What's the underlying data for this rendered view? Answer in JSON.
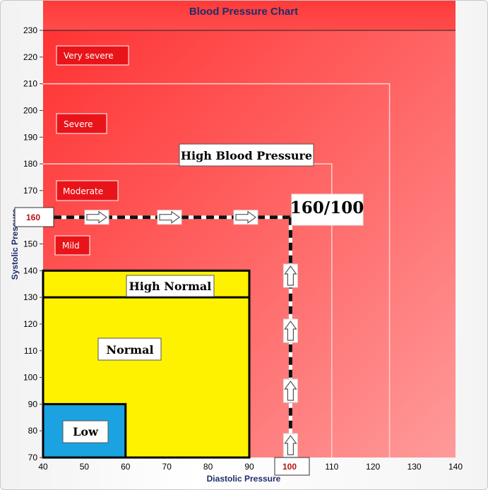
{
  "chart_data": {
    "type": "area",
    "title": "Blood Pressure Chart",
    "xlabel": "Diastolic Pressure",
    "ylabel": "Systolic Pressure",
    "xlim": [
      40,
      140
    ],
    "ylim": [
      70,
      230
    ],
    "x_ticks": [
      40,
      50,
      60,
      70,
      80,
      90,
      100,
      110,
      120,
      130,
      140
    ],
    "y_ticks": [
      70,
      80,
      90,
      100,
      110,
      120,
      130,
      140,
      150,
      160,
      170,
      180,
      190,
      200,
      210,
      220,
      230
    ],
    "zones": [
      {
        "name": "Low",
        "x_max": 60,
        "y_max": 90,
        "color": "#1aa3e0"
      },
      {
        "name": "Normal",
        "x_max": 90,
        "y_max": 130,
        "color": "#fff200"
      },
      {
        "name": "High Normal",
        "x_max": 90,
        "y_max": 140,
        "color": "#fff200"
      }
    ],
    "band_label": "High Blood Pressure",
    "severity_labels": [
      "Very severe",
      "Severe",
      "Moderate",
      "Mild"
    ],
    "reading": {
      "systolic": 160,
      "diastolic": 100,
      "label": "160/100"
    },
    "reading_marks": {
      "y": "160",
      "x": "100"
    },
    "colors": {
      "background_red": "#ff3b3b",
      "light_red": "#ff8a8a",
      "mark_red": "#e01818"
    }
  }
}
